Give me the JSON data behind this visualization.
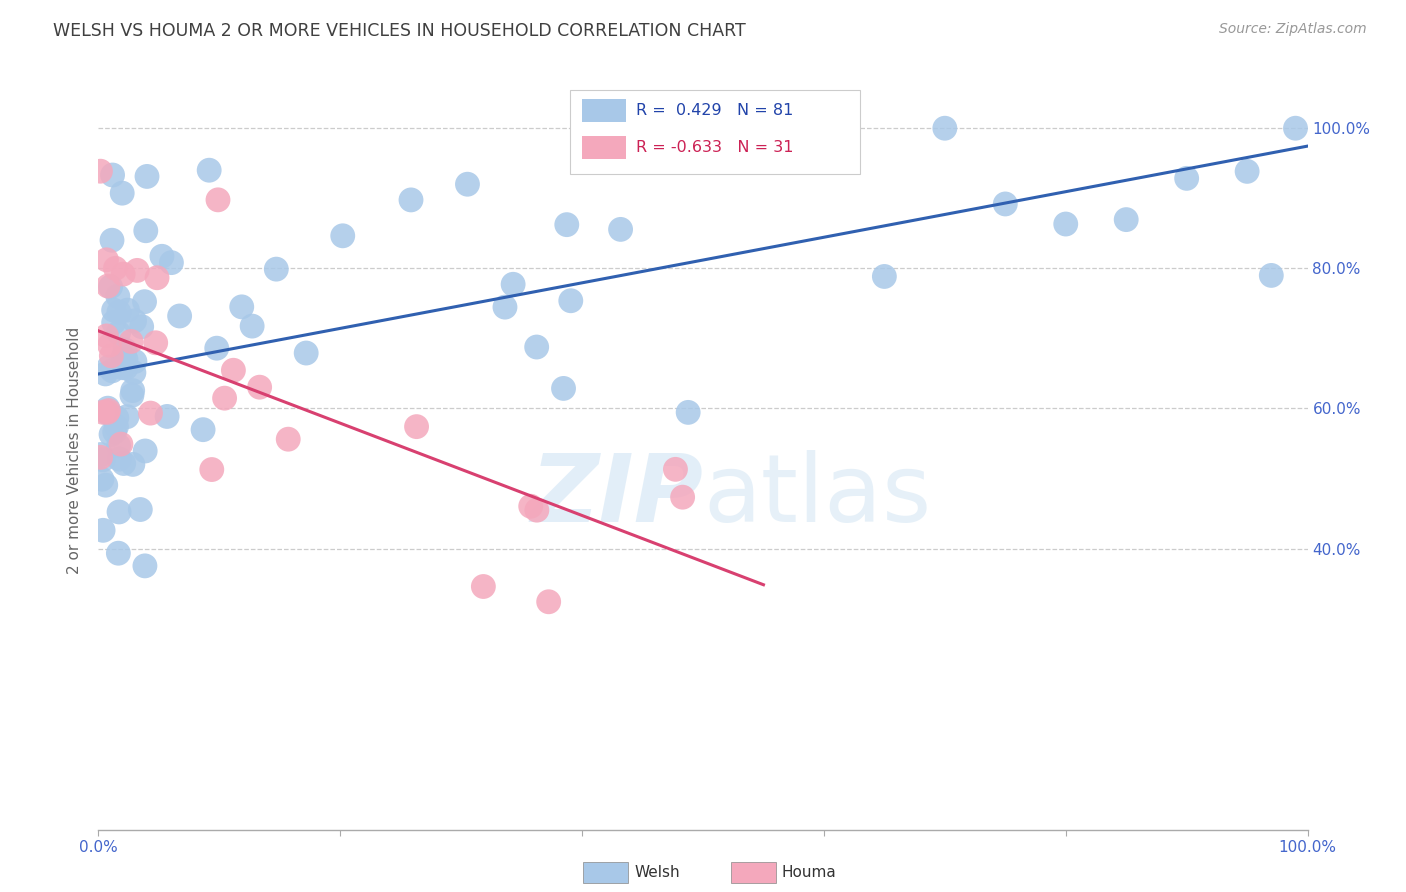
{
  "title": "WELSH VS HOUMA 2 OR MORE VEHICLES IN HOUSEHOLD CORRELATION CHART",
  "source": "Source: ZipAtlas.com",
  "ylabel": "2 or more Vehicles in Household",
  "watermark": "ZIPatlas",
  "welsh_R": 0.429,
  "welsh_N": 81,
  "houma_R": -0.633,
  "houma_N": 31,
  "welsh_color": "#a8c8e8",
  "houma_color": "#f4a8bc",
  "welsh_line_color": "#3060b0",
  "houma_line_color": "#d84070",
  "title_color": "#404040",
  "source_color": "#999999",
  "legend_R_color_welsh": "#2244aa",
  "legend_R_color_houma": "#cc2255",
  "grid_color": "#cccccc",
  "background_color": "#ffffff",
  "tick_color": "#4466cc",
  "xlim": [
    0.0,
    1.0
  ],
  "ylim": [
    0.0,
    1.0
  ],
  "ytick_vals": [
    0.4,
    0.6,
    0.8,
    1.0
  ],
  "ytick_labels": [
    "40.0%",
    "60.0%",
    "80.0%",
    "100.0%"
  ]
}
